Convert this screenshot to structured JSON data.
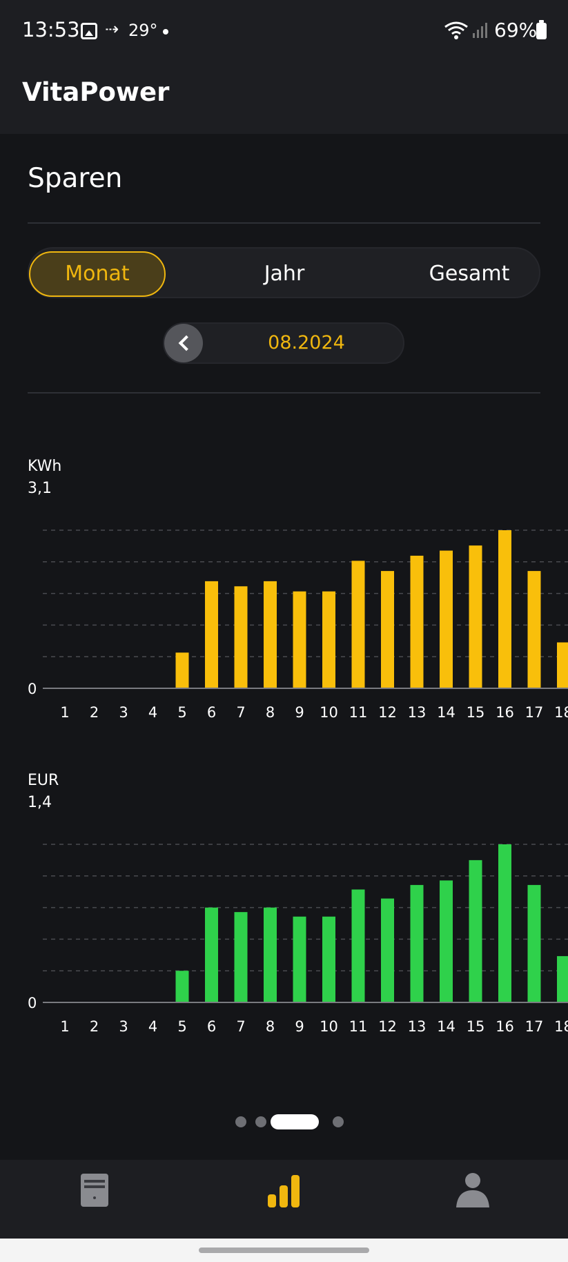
{
  "status_bar": {
    "time": "13:53",
    "temperature": "29°",
    "battery": "69%"
  },
  "app": {
    "title": "VitaPower"
  },
  "main": {
    "section_title": "Sparen",
    "tabs": [
      {
        "label": "Monat",
        "active": true
      },
      {
        "label": "Jahr",
        "active": false
      },
      {
        "label": "Gesamt",
        "active": false
      }
    ],
    "date": "08.2024"
  },
  "colors": {
    "accent": "#f0b70f",
    "kwh_bar": "#f9bf0b",
    "eur_bar": "#2fd14b",
    "background": "#141518"
  },
  "chart_data": [
    {
      "type": "bar",
      "unit_label": "KWh",
      "y_max_label": "3,1",
      "y_min_label": "0",
      "ylim": [
        0,
        3.1
      ],
      "grid": "dashed",
      "categories": [
        "1",
        "2",
        "3",
        "4",
        "5",
        "6",
        "7",
        "8",
        "9",
        "10",
        "11",
        "12",
        "13",
        "14",
        "15",
        "16",
        "17",
        "18"
      ],
      "values": [
        0,
        0,
        0,
        0,
        0.7,
        2.1,
        2.0,
        2.1,
        1.9,
        1.9,
        2.5,
        2.3,
        2.6,
        2.7,
        2.8,
        3.1,
        2.3,
        0.9
      ]
    },
    {
      "type": "bar",
      "unit_label": "EUR",
      "y_max_label": "1,4",
      "y_min_label": "0",
      "ylim": [
        0,
        1.4
      ],
      "grid": "dashed",
      "categories": [
        "1",
        "2",
        "3",
        "4",
        "5",
        "6",
        "7",
        "8",
        "9",
        "10",
        "11",
        "12",
        "13",
        "14",
        "15",
        "16",
        "17",
        "18"
      ],
      "values": [
        0,
        0,
        0,
        0,
        0.28,
        0.84,
        0.8,
        0.84,
        0.76,
        0.76,
        1.0,
        0.92,
        1.04,
        1.08,
        1.26,
        1.4,
        1.04,
        0.41
      ]
    }
  ],
  "pager": {
    "pages": 4,
    "active": 2
  },
  "bottom_nav": {
    "items": [
      {
        "icon": "device-icon"
      },
      {
        "icon": "bar-chart-icon",
        "active": true
      },
      {
        "icon": "profile-icon"
      }
    ]
  }
}
